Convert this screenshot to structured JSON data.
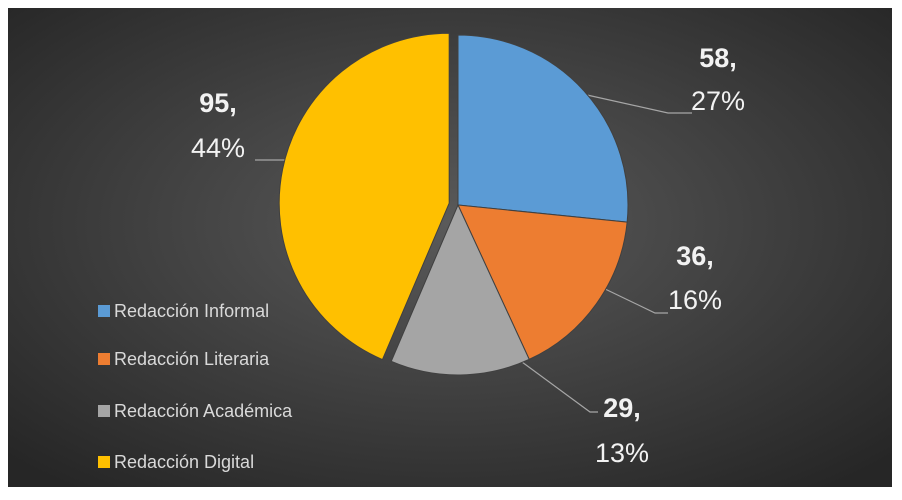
{
  "chart_data": {
    "type": "pie",
    "categories": [
      "Redacción Informal",
      "Redacción Literaria",
      "Redacción Académica",
      "Redacción Digital"
    ],
    "values": [
      58,
      36,
      29,
      95
    ],
    "value_labels": [
      "58,",
      "36,",
      "29,",
      "95,"
    ],
    "percent_labels": [
      "27%",
      "16%",
      "13%",
      "44%"
    ],
    "colors": [
      "#5b9bd5",
      "#ed7d31",
      "#a5a5a5",
      "#ffc000"
    ],
    "exploded": [
      false,
      false,
      false,
      true
    ],
    "legend": "left"
  }
}
